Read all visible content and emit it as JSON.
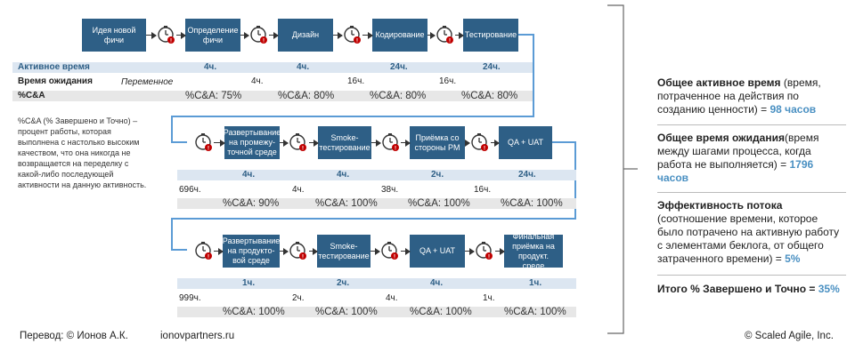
{
  "row1": {
    "boxes": [
      "Идея новой фичи",
      "Определение фичи",
      "Дизайн",
      "Кодирование",
      "Тестирование"
    ],
    "active_label": "Активное время",
    "wait_label": "Время ожидания",
    "cda_label": "%C&A",
    "active": [
      "4ч.",
      "4ч.",
      "24ч.",
      "24ч."
    ],
    "wait": [
      "Переменное",
      "4ч.",
      "16ч.",
      "16ч."
    ],
    "cda": [
      "%C&A: 75%",
      "%C&A: 80%",
      "%C&A: 80%",
      "%C&A: 80%"
    ]
  },
  "row2": {
    "boxes": [
      "Развертывание на промежу-точной среде",
      "Smoke-тестирование",
      "Приёмка со стороны PM",
      "QA + UAT"
    ],
    "active": [
      "4ч.",
      "4ч.",
      "2ч.",
      "24ч."
    ],
    "wait": [
      "696ч.",
      "4ч.",
      "38ч.",
      "16ч."
    ],
    "cda": [
      "%C&A: 90%",
      "%C&A: 100%",
      "%C&A: 100%",
      "%C&A: 100%"
    ]
  },
  "row3": {
    "boxes": [
      "Развертывание на продуктo-вой среде",
      "Smoke-тестирование",
      "QA + UAT",
      "Финальная приёмка на продукт. среде"
    ],
    "active": [
      "1ч.",
      "2ч.",
      "4ч.",
      "1ч."
    ],
    "wait": [
      "999ч.",
      "2ч.",
      "4ч.",
      "1ч."
    ],
    "cda": [
      "%C&A: 100%",
      "%C&A: 100%",
      "%C&A: 100%",
      "%C&A: 100%"
    ]
  },
  "note": "%C&A (% Завершено и Точно) – процент работы, которая выполнена с настолько высоким качеством, что она никогда не возвращается на переделку с какой-либо последующей активности на данную активность.",
  "summary": {
    "active_title": "Общее активное время",
    "active_desc": " (время, потраченное на действия по созданию ценности) = ",
    "active_value": "98 часов",
    "wait_title": "Общее время ожидания",
    "wait_desc": "(время между шагами процесса, когда работа не выполняется) = ",
    "wait_value": "1796 часов",
    "eff_title": "Эффективность потока",
    "eff_desc": " (соотношение времени, которое было потрачено на активную работу с элементами беклога, от общего затраченного времени) = ",
    "eff_value": "5%",
    "total_title": "Итого % Завершено и Точно = ",
    "total_value": "35%"
  },
  "footer": {
    "translation": "Перевод: © Ионов А.К.",
    "site": "ionovpartners.ru",
    "copyright": "© Scaled Agile,  Inc."
  },
  "colors": {
    "box": "#2e5f86",
    "flow_line": "#5b9bd5",
    "value": "#4a90c2",
    "alert": "#c00000"
  },
  "icons": {
    "wait": "clock-alert-icon"
  }
}
